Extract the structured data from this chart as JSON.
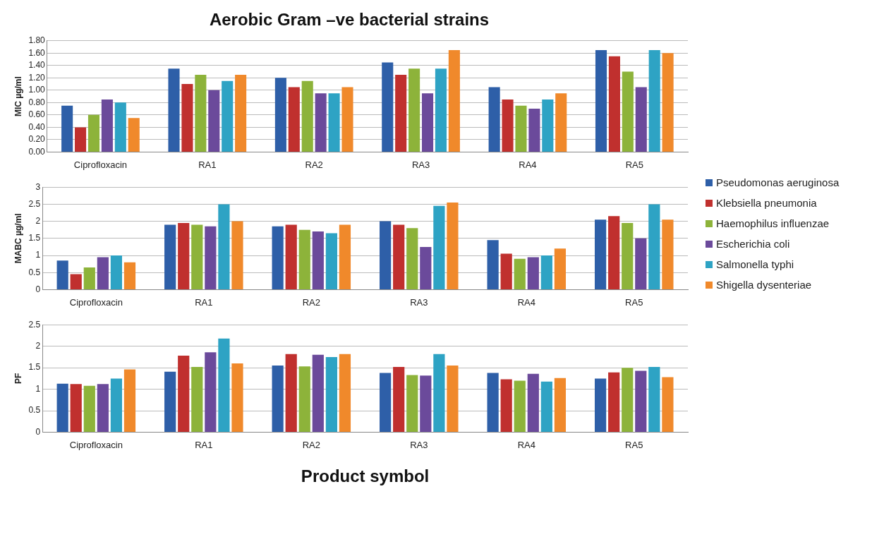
{
  "chart_data": [
    {
      "type": "bar",
      "title": "Aerobic Gram –ve bacterial strains",
      "ylabel": "MIC µg/ml",
      "categories": [
        "Ciprofloxacin",
        "RA1",
        "RA2",
        "RA3",
        "RA4",
        "RA5"
      ],
      "series": [
        {
          "name": "Pseudomonas aeruginosa",
          "color": "#2e5fa8",
          "values": [
            0.75,
            1.35,
            1.2,
            1.45,
            1.05,
            1.65
          ]
        },
        {
          "name": "Klebsiella pneumonia",
          "color": "#c0302e",
          "values": [
            0.4,
            1.1,
            1.05,
            1.25,
            0.85,
            1.55
          ]
        },
        {
          "name": "Haemophilus influenzae",
          "color": "#8db33a",
          "values": [
            0.6,
            1.25,
            1.15,
            1.35,
            0.75,
            1.3
          ]
        },
        {
          "name": "Escherichia coli",
          "color": "#6b4a9b",
          "values": [
            0.85,
            1.0,
            0.95,
            0.95,
            0.7,
            1.05
          ]
        },
        {
          "name": "Salmonella typhi",
          "color": "#2ea3c4",
          "values": [
            0.8,
            1.15,
            0.95,
            1.35,
            0.85,
            1.65
          ]
        },
        {
          "name": "Shigella dysenteriae",
          "color": "#f0892b",
          "values": [
            0.55,
            1.25,
            1.05,
            1.65,
            0.95,
            1.6
          ]
        }
      ],
      "ylim": [
        0,
        1.8
      ],
      "yticks": [
        {
          "value": 0,
          "label": "0.00"
        },
        {
          "value": 0.2,
          "label": "0.20"
        },
        {
          "value": 0.4,
          "label": "0.40"
        },
        {
          "value": 0.6,
          "label": "0.60"
        },
        {
          "value": 0.8,
          "label": "0.80"
        },
        {
          "value": 1,
          "label": "1.00"
        },
        {
          "value": 1.2,
          "label": "1.20"
        },
        {
          "value": 1.4,
          "label": "1.40"
        },
        {
          "value": 1.6,
          "label": "1.60"
        },
        {
          "value": 1.8,
          "label": "1.80"
        }
      ],
      "grid": "y",
      "legend": "right"
    },
    {
      "type": "bar",
      "ylabel": "MABC µg/ml",
      "categories": [
        "Ciprofloxacin",
        "RA1",
        "RA2",
        "RA3",
        "RA4",
        "RA5"
      ],
      "series": [
        {
          "color": "#2e5fa8",
          "values": [
            0.85,
            1.9,
            1.85,
            2.0,
            1.45,
            2.05
          ]
        },
        {
          "color": "#c0302e",
          "values": [
            0.45,
            1.95,
            1.9,
            1.9,
            1.05,
            2.15
          ]
        },
        {
          "color": "#8db33a",
          "values": [
            0.65,
            1.9,
            1.75,
            1.8,
            0.9,
            1.95
          ]
        },
        {
          "color": "#6b4a9b",
          "values": [
            0.95,
            1.85,
            1.7,
            1.25,
            0.95,
            1.5
          ]
        },
        {
          "color": "#2ea3c4",
          "values": [
            1.0,
            2.5,
            1.65,
            2.45,
            1.0,
            2.5
          ]
        },
        {
          "color": "#f0892b",
          "values": [
            0.8,
            2.0,
            1.9,
            2.55,
            1.2,
            2.05
          ]
        }
      ],
      "ylim": [
        0,
        3
      ],
      "yticks": [
        0,
        0.5,
        1,
        1.5,
        2,
        2.5,
        3
      ],
      "grid": "y"
    },
    {
      "type": "bar",
      "ylabel": "PF",
      "xlabel": "Product symbol",
      "categories": [
        "Ciprofloxacin",
        "RA1",
        "RA2",
        "RA3",
        "RA4",
        "RA5"
      ],
      "series": [
        {
          "color": "#2e5fa8",
          "values": [
            1.13,
            1.41,
            1.55,
            1.38,
            1.38,
            1.25
          ]
        },
        {
          "color": "#c0302e",
          "values": [
            1.12,
            1.78,
            1.82,
            1.52,
            1.23,
            1.39
          ]
        },
        {
          "color": "#8db33a",
          "values": [
            1.08,
            1.52,
            1.53,
            1.33,
            1.2,
            1.5
          ]
        },
        {
          "color": "#6b4a9b",
          "values": [
            1.12,
            1.86,
            1.8,
            1.32,
            1.36,
            1.43
          ]
        },
        {
          "color": "#2ea3c4",
          "values": [
            1.25,
            2.18,
            1.75,
            1.82,
            1.18,
            1.52
          ]
        },
        {
          "color": "#f0892b",
          "values": [
            1.46,
            1.6,
            1.82,
            1.55,
            1.26,
            1.28
          ]
        }
      ],
      "ylim": [
        0,
        2.5
      ],
      "yticks": [
        0,
        0.5,
        1,
        1.5,
        2,
        2.5
      ],
      "grid": "y"
    }
  ]
}
